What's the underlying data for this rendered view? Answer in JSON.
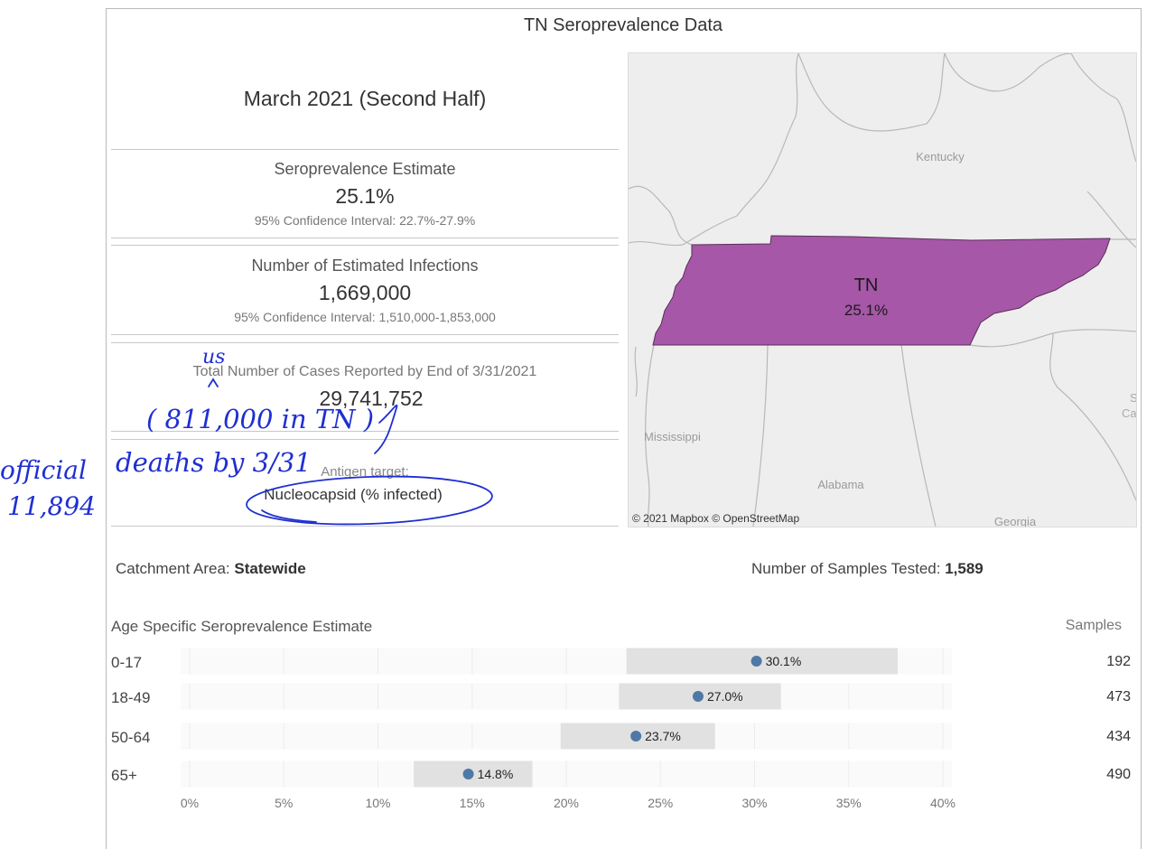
{
  "title": "TN Seroprevalence Data",
  "period": "March 2021 (Second Half)",
  "kpis": {
    "sero": {
      "label": "Seroprevalence Estimate",
      "value": "25.1%",
      "ci": "95% Confidence Interval: 22.7%-27.9%"
    },
    "infections": {
      "label": "Number of Estimated Infections",
      "value": "1,669,000",
      "ci": "95% Confidence Interval: 1,510,000-1,853,000"
    },
    "cases": {
      "label": "Total Number of Cases Reported by End of 3/31/2021",
      "value": "29,741,752"
    }
  },
  "antigen": {
    "label": "Antigen target:",
    "value": "Nucleocapsid (% infected)"
  },
  "map": {
    "state_abbr": "TN",
    "state_value": "25.1%",
    "labels": {
      "kentucky": "Kentucky",
      "mississippi": "Mississippi",
      "alabama": "Alabama",
      "georgia": "Georgia",
      "sc": "S",
      "ca": "Ca"
    },
    "attribution": "© 2021 Mapbox  © OpenStreetMap",
    "colors": {
      "state_fill": "#a657a7",
      "land": "#eeeeee",
      "border": "#b8b8b8"
    }
  },
  "catchment": {
    "label": "Catchment Area:",
    "value": "Statewide"
  },
  "samples_tested": {
    "label": "Number of Samples Tested:",
    "value": "1,589"
  },
  "age_section": {
    "title": "Age Specific Seroprevalence Estimate",
    "samples_header": "Samples"
  },
  "chart_data": {
    "type": "bar",
    "title": "Age Specific Seroprevalence Estimate",
    "categories": [
      "0-17",
      "18-49",
      "50-64",
      "65+"
    ],
    "series": [
      {
        "name": "",
        "values": [
          30.1,
          27.0,
          23.7,
          14.8
        ],
        "ci_low": [
          23.2,
          22.8,
          19.7,
          11.9
        ],
        "ci_high": [
          37.6,
          31.4,
          27.9,
          18.2
        ]
      }
    ],
    "labels": [
      "30.1%",
      "27.0%",
      "23.7%",
      "14.8%"
    ],
    "samples": [
      "192",
      "473",
      "434",
      "490"
    ],
    "x_ticks": [
      "0%",
      "5%",
      "10%",
      "15%",
      "20%",
      "25%",
      "30%",
      "35%",
      "40%"
    ],
    "xlim": [
      0,
      40
    ],
    "grid": true,
    "colors": {
      "point": "#4e79a7",
      "ci_band": "#e1e1e1"
    }
  },
  "annotations": {
    "us": "us",
    "caret": "^",
    "tn_cases": "( 811,000 in TN )",
    "deaths": "deaths by 3/31",
    "official": "official",
    "count": "11,894",
    "ink_color": "#1f2fd1"
  }
}
